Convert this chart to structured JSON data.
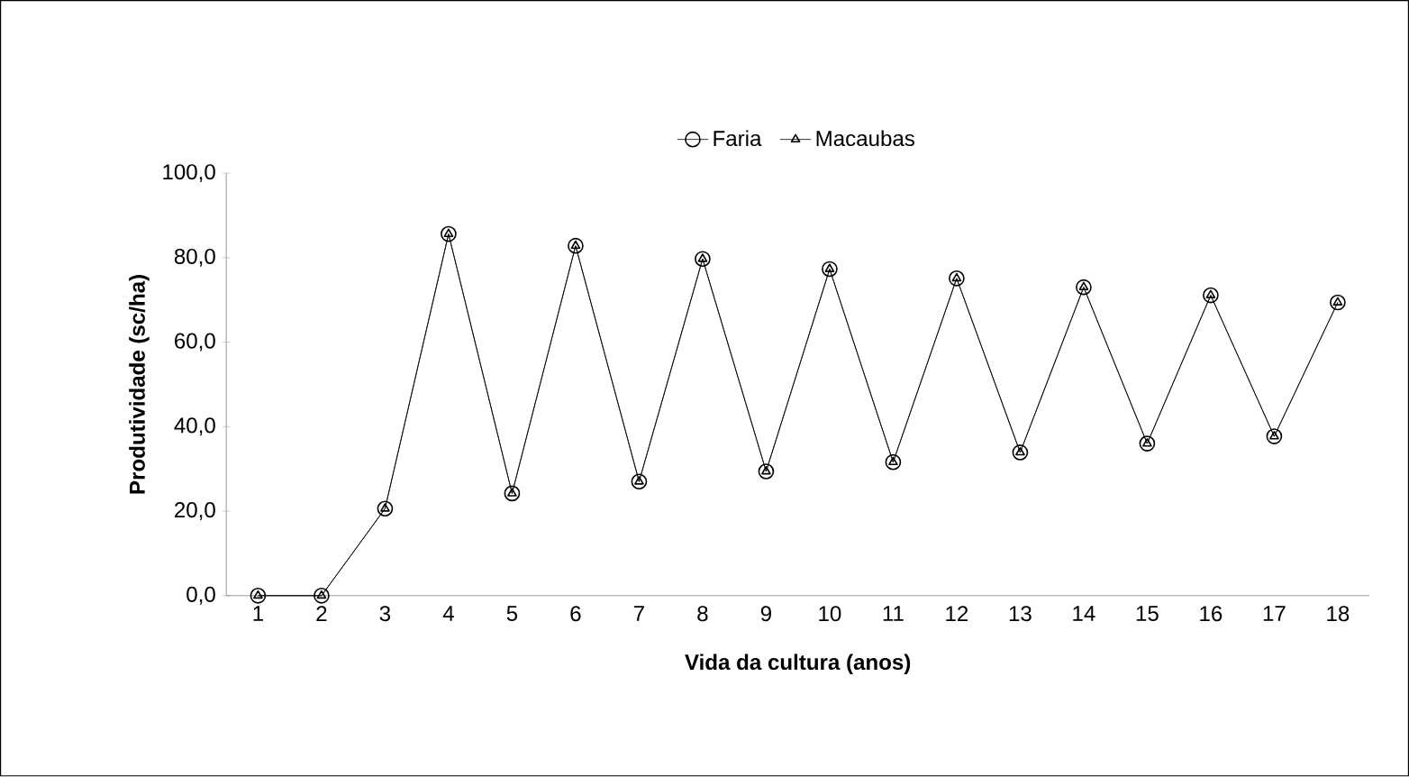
{
  "chart_data": {
    "type": "line",
    "xlabel": "Vida da cultura (anos)",
    "ylabel": "Produtividade (sc/ha)",
    "categories": [
      "1",
      "2",
      "3",
      "4",
      "5",
      "6",
      "7",
      "8",
      "9",
      "10",
      "11",
      "12",
      "13",
      "14",
      "15",
      "16",
      "17",
      "18"
    ],
    "ylim": [
      0,
      100
    ],
    "yticks": [
      {
        "value": 0,
        "label": "0,0"
      },
      {
        "value": 20,
        "label": "20,0"
      },
      {
        "value": 40,
        "label": "40,0"
      },
      {
        "value": 60,
        "label": "60,0"
      },
      {
        "value": 80,
        "label": "80,0"
      },
      {
        "value": 100,
        "label": "100,0"
      }
    ],
    "grid": false,
    "legend": "top",
    "series": [
      {
        "name": "Faria",
        "color": "#000000",
        "marker": "circle",
        "values": [
          0,
          0,
          20.6,
          85.6,
          24.2,
          82.8,
          27.0,
          79.7,
          29.4,
          77.3,
          31.6,
          75.1,
          33.9,
          73.0,
          36.0,
          71.1,
          37.7,
          69.4
        ]
      },
      {
        "name": "Macaubas",
        "color": "#000000",
        "marker": "triangle",
        "values": [
          0,
          0,
          20.6,
          85.6,
          24.2,
          82.8,
          27.0,
          79.7,
          29.4,
          77.3,
          31.6,
          75.1,
          33.9,
          73.0,
          36.0,
          71.1,
          37.7,
          69.4
        ]
      }
    ]
  }
}
